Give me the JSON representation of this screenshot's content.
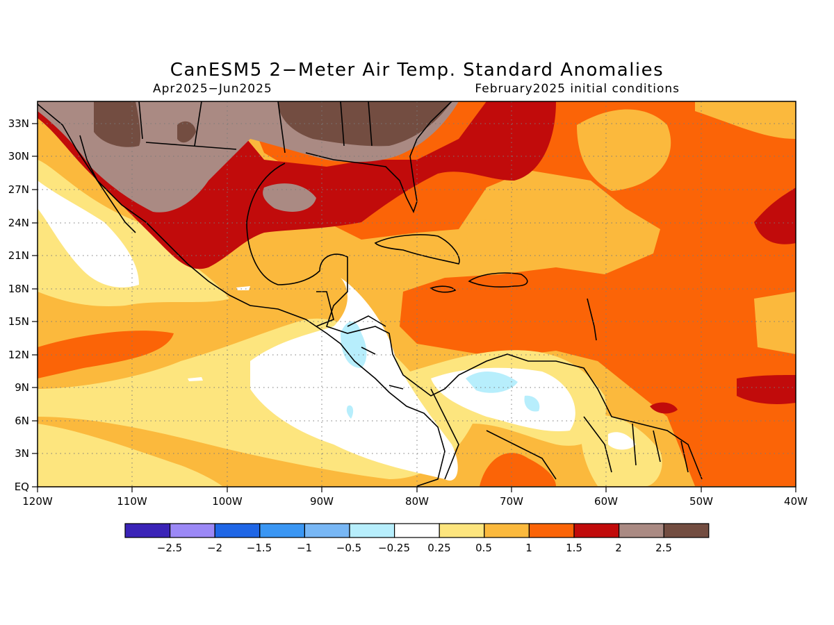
{
  "title": "CanESM5 2−Meter Air Temp. Standard Anomalies",
  "subtitle_left": "Apr2025−Jun2025",
  "subtitle_right": "February2025 initial conditions",
  "map": {
    "lon_ticks": [
      "120W",
      "110W",
      "100W",
      "90W",
      "80W",
      "70W",
      "60W",
      "50W",
      "40W"
    ],
    "lat_ticks": [
      "EQ",
      "3N",
      "6N",
      "9N",
      "12N",
      "15N",
      "18N",
      "21N",
      "24N",
      "27N",
      "30N",
      "33N"
    ],
    "lon_range": [
      -120,
      -40
    ],
    "lat_range": [
      0,
      35
    ],
    "grid": "dotted"
  },
  "legend": {
    "labels": [
      "−2.5",
      "−2",
      "−1.5",
      "−1",
      "−0.5",
      "−0.25",
      "0.25",
      "0.5",
      "1",
      "1.5",
      "2",
      "2.5"
    ],
    "colors": [
      "#3a23b7",
      "#9b88f6",
      "#1f66e6",
      "#3a96f3",
      "#78b7f5",
      "#b7eefc",
      "#ffffff",
      "#fde57e",
      "#fbb93d",
      "#fb6407",
      "#c10b0b",
      "#aa8a83",
      "#734d41"
    ]
  }
}
